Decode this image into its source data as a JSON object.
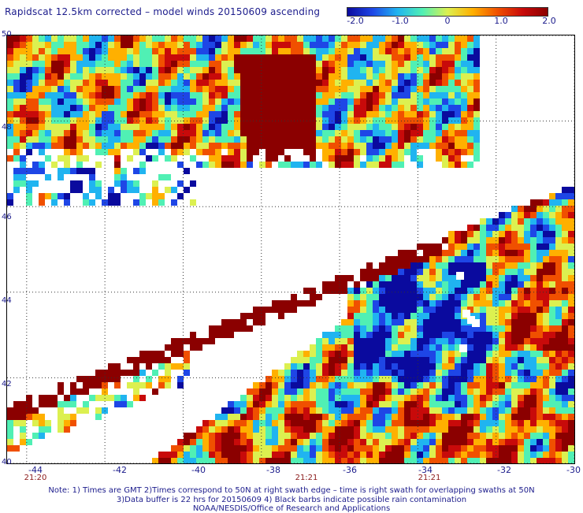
{
  "title": "Rapidscat 12.5km corrected – model winds 20150609 ascending",
  "colorbar": {
    "labels": [
      "-2.0",
      "-1.0",
      "0",
      "1.0",
      "2.0"
    ],
    "values": [
      -2.0,
      -1.0,
      0.0,
      1.0,
      2.0
    ],
    "range": [
      -2.0,
      2.0
    ],
    "colors": [
      "#0a0a9e",
      "#1e46e6",
      "#20b4f0",
      "#50f0b4",
      "#dcf050",
      "#ffb000",
      "#f05000",
      "#c80a0a",
      "#8b0000"
    ]
  },
  "map": {
    "lon_range": [
      -44.5,
      -30
    ],
    "lat_range": [
      40,
      50
    ],
    "lon_ticks": [
      "-44",
      "-42",
      "-40",
      "-38",
      "-36",
      "-34",
      "-32",
      "-30"
    ],
    "lon_tick_values": [
      -44,
      -42,
      -40,
      -38,
      -36,
      -34,
      -32,
      -30
    ],
    "lat_ticks": [
      "50",
      "48",
      "46",
      "44",
      "42",
      "40"
    ],
    "lat_tick_values": [
      50,
      48,
      46,
      44,
      42,
      40
    ],
    "time_labels": [
      {
        "text": "21:20",
        "lon": -44.3
      },
      {
        "text": "21:21",
        "lon": -37.5
      },
      {
        "text": "21:21",
        "lon": -33.4
      }
    ],
    "grid": true
  },
  "notes": [
    "Note: 1) Times are GMT 2)Times correspond to 50N at right swath edge – time is right swath for overlapping swaths at 50N",
    "3)Data buffer is 22 hrs for 20150609 4) Black barbs indicate possible rain contamination",
    "NOAA/NESDIS/Office of Research and Applications"
  ]
}
